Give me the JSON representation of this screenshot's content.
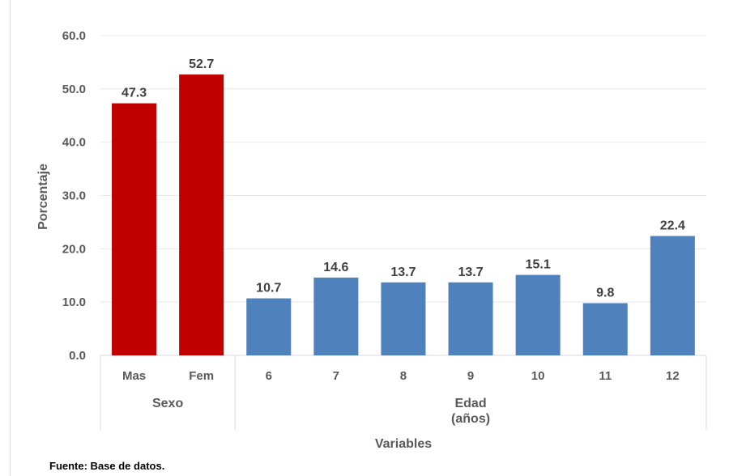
{
  "chart_data": {
    "type": "bar",
    "xlabel": "Variables",
    "ylabel": "Porcentaje",
    "ylim": [
      0,
      60
    ],
    "yticks": [
      "0.0",
      "10.0",
      "20.0",
      "30.0",
      "40.0",
      "50.0",
      "60.0"
    ],
    "grid": true,
    "groups": [
      {
        "name": "Sexo",
        "color": "#C00000",
        "categories": [
          "Mas",
          "Fem"
        ],
        "values": [
          47.3,
          52.7
        ],
        "labels": [
          "47.3",
          "52.7"
        ]
      },
      {
        "name": "Edad\n(años)",
        "color": "#4F81BD",
        "categories": [
          "6",
          "7",
          "8",
          "9",
          "10",
          "11",
          "12"
        ],
        "values": [
          10.7,
          14.6,
          13.7,
          13.7,
          15.1,
          9.8,
          22.4
        ],
        "labels": [
          "10.7",
          "14.6",
          "13.7",
          "13.7",
          "15.1",
          "9.8",
          "22.4"
        ]
      }
    ]
  },
  "footnote": "Fuente: Base de datos."
}
